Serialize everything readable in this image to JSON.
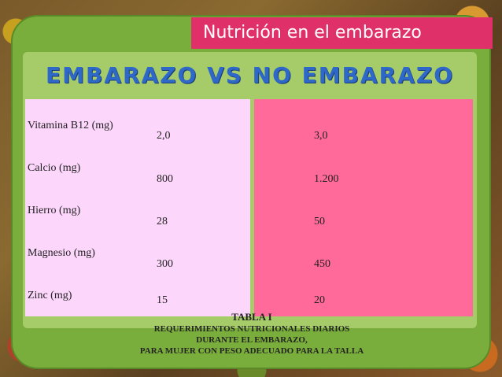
{
  "header": {
    "title": "Nutrición en el embarazo"
  },
  "subtitle": "EMBARAZO VS NO EMBARAZO",
  "table": {
    "rows": [
      {
        "nutrient": "Vitamina B12 (mg)",
        "value_a": "2,0",
        "value_b": "3,0"
      },
      {
        "nutrient": "Calcio (mg)",
        "value_a": "800",
        "value_b": "1.200"
      },
      {
        "nutrient": "Hierro (mg)",
        "value_a": "28",
        "value_b": "50"
      },
      {
        "nutrient": "Magnesio (mg)",
        "value_a": "300",
        "value_b": "450"
      },
      {
        "nutrient": "Zinc (mg)",
        "value_a": "15",
        "value_b": "20"
      }
    ]
  },
  "caption": {
    "line1": "TABLA I",
    "line2": "REQUERIMIENTOS NUTRICIONALES DIARIOS",
    "line3": "DURANTE EL EMBARAZO,",
    "line4": "PARA MUJER CON PESO ADECUADO PARA LA TALLA"
  },
  "colors": {
    "header_bar": "#e0306a",
    "subtitle": "#2e68c8",
    "panel_green": "#7aae3c",
    "left_column": "#fdd6fc",
    "right_column": "#ff6a9a"
  }
}
